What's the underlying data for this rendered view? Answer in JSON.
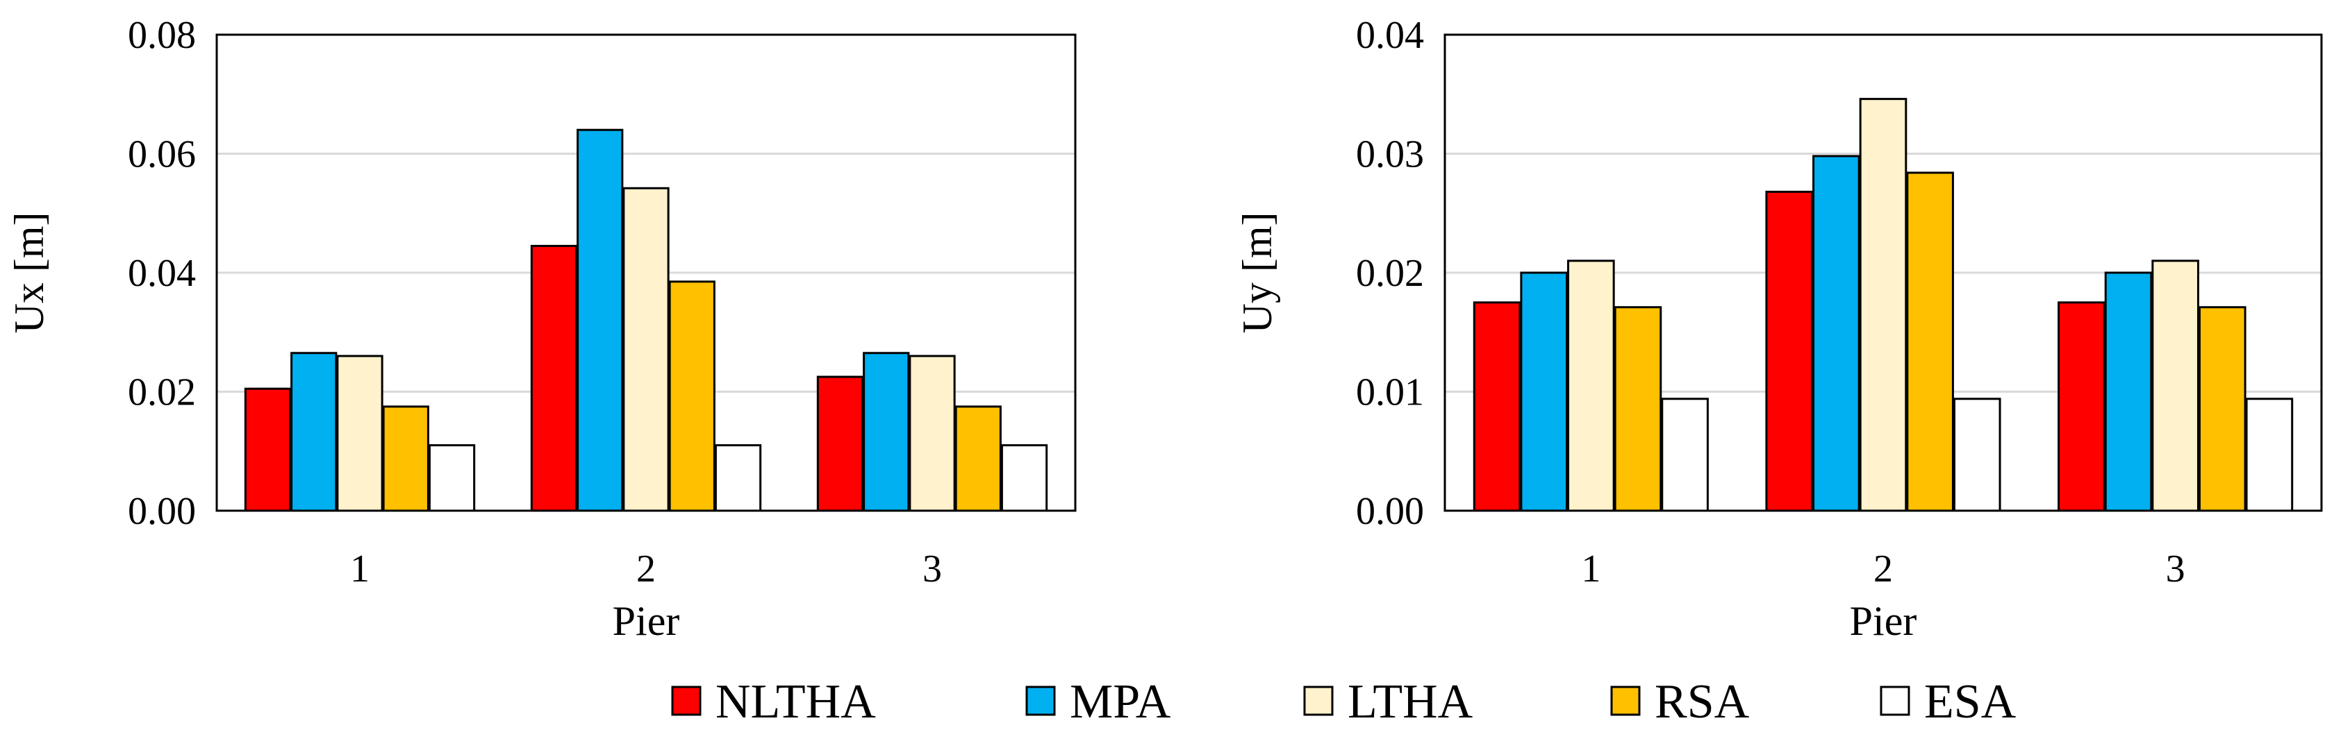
{
  "legend": {
    "items": [
      {
        "name": "NLTHA",
        "color": "#ff0000"
      },
      {
        "name": "MPA",
        "color": "#00b0f0"
      },
      {
        "name": "LTHA",
        "color": "#fff2cc"
      },
      {
        "name": "RSA",
        "color": "#ffc000"
      },
      {
        "name": "ESA",
        "color": "#ffffff"
      }
    ]
  },
  "chart_data": [
    {
      "type": "bar",
      "title": "",
      "xlabel": "Pier",
      "ylabel": "Ux [m]",
      "categories": [
        "1",
        "2",
        "3"
      ],
      "ylim": [
        0,
        0.08
      ],
      "yticks": [
        "0.00",
        "0.02",
        "0.04",
        "0.06",
        "0.08"
      ],
      "grid": true,
      "series": [
        {
          "name": "NLTHA",
          "values": [
            0.0205,
            0.0445,
            0.0225
          ]
        },
        {
          "name": "MPA",
          "values": [
            0.0265,
            0.064,
            0.0265
          ]
        },
        {
          "name": "LTHA",
          "values": [
            0.026,
            0.0542,
            0.026
          ]
        },
        {
          "name": "RSA",
          "values": [
            0.0175,
            0.0385,
            0.0175
          ]
        },
        {
          "name": "ESA",
          "values": [
            0.011,
            0.011,
            0.011
          ]
        }
      ]
    },
    {
      "type": "bar",
      "title": "",
      "xlabel": "Pier",
      "ylabel": "Uy [m]",
      "categories": [
        "1",
        "2",
        "3"
      ],
      "ylim": [
        0,
        0.04
      ],
      "yticks": [
        "0.00",
        "0.01",
        "0.02",
        "0.03",
        "0.04"
      ],
      "grid": true,
      "series": [
        {
          "name": "NLTHA",
          "values": [
            0.0175,
            0.0268,
            0.0175
          ]
        },
        {
          "name": "MPA",
          "values": [
            0.02,
            0.0298,
            0.02
          ]
        },
        {
          "name": "LTHA",
          "values": [
            0.021,
            0.0346,
            0.021
          ]
        },
        {
          "name": "RSA",
          "values": [
            0.0171,
            0.0284,
            0.0171
          ]
        },
        {
          "name": "ESA",
          "values": [
            0.0094,
            0.0094,
            0.0094
          ]
        }
      ]
    }
  ]
}
